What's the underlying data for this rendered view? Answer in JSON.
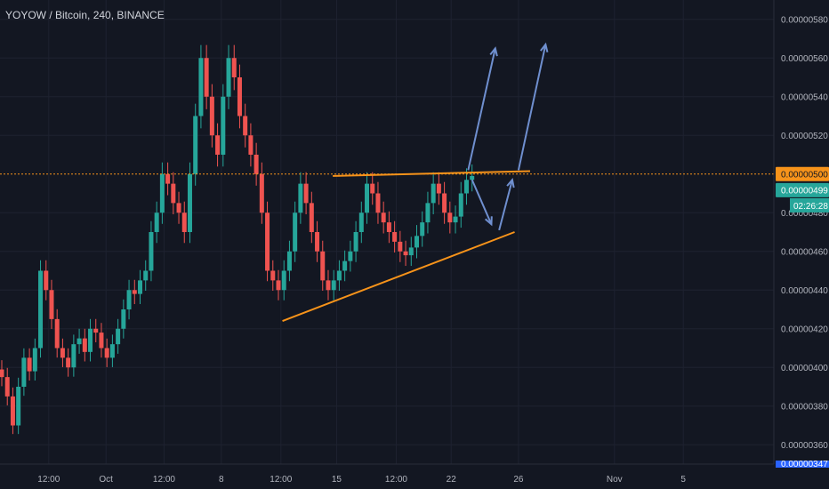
{
  "header": {
    "symbol": "YOYOW / Bitcoin, 240, BINANCE"
  },
  "colors": {
    "background": "#131722",
    "grid": "#1e2230",
    "up": "#26a69a",
    "down": "#ef5350",
    "trendline": "#f7931a",
    "arrow": "#6f8fcf",
    "price_line": "#f7931a",
    "last_price_tag": "#26a69a"
  },
  "chart_data": {
    "type": "candlestick",
    "y_axis_ticks": [
      "0.00000580",
      "0.00000560",
      "0.00000540",
      "0.00000520",
      "0.00000480",
      "0.00000460",
      "0.00000440",
      "0.00000420",
      "0.00000400",
      "0.00000380",
      "0.00000360"
    ],
    "x_axis_ticks": [
      "12:00",
      "Oct",
      "12:00",
      "8",
      "12:00",
      "15",
      "12:00",
      "22",
      "26",
      "Nov",
      "5"
    ],
    "ylim": [
      3.5e-06,
      5.9e-06
    ],
    "horizontal_level": {
      "price": "0.00000500",
      "value": 5e-06
    },
    "last_price": {
      "price": "0.00000499",
      "value": 4.99e-06,
      "countdown": "02:26:28"
    },
    "partial_bottom_label": "0.00000347",
    "candles_close_path": [
      3.95e-06,
      3.85e-06,
      3.7e-06,
      3.9e-06,
      4.05e-06,
      3.98e-06,
      4.1e-06,
      4.5e-06,
      4.4e-06,
      4.25e-06,
      4.1e-06,
      4.05e-06,
      4e-06,
      4.12e-06,
      4.15e-06,
      4.08e-06,
      4.2e-06,
      4.18e-06,
      4.1e-06,
      4.05e-06,
      4.12e-06,
      4.2e-06,
      4.3e-06,
      4.4e-06,
      4.38e-06,
      4.45e-06,
      4.5e-06,
      4.7e-06,
      4.8e-06,
      5e-06,
      4.95e-06,
      4.85e-06,
      4.8e-06,
      4.7e-06,
      5e-06,
      5.3e-06,
      5.6e-06,
      5.4e-06,
      5.2e-06,
      5.1e-06,
      5.4e-06,
      5.6e-06,
      5.5e-06,
      5.3e-06,
      5.2e-06,
      5.1e-06,
      5e-06,
      4.8e-06,
      4.5e-06,
      4.45e-06,
      4.4e-06,
      4.5e-06,
      4.6e-06,
      4.8e-06,
      4.95e-06,
      4.85e-06,
      4.7e-06,
      4.6e-06,
      4.45e-06,
      4.4e-06,
      4.45e-06,
      4.5e-06,
      4.55e-06,
      4.6e-06,
      4.7e-06,
      4.8e-06,
      4.95e-06,
      4.9e-06,
      4.8e-06,
      4.75e-06,
      4.7e-06,
      4.65e-06,
      4.6e-06,
      4.58e-06,
      4.62e-06,
      4.68e-06,
      4.75e-06,
      4.85e-06,
      4.95e-06,
      4.9e-06,
      4.8e-06,
      4.75e-06,
      4.78e-06,
      4.9e-06,
      4.97e-06,
      4.99e-06
    ],
    "annotations": {
      "resistance_line": {
        "from": [
          0.43,
          4.99e-06
        ],
        "to": [
          0.685,
          5.015e-06
        ]
      },
      "support_line": {
        "from": [
          0.365,
          4.24e-06
        ],
        "to": [
          0.665,
          4.7e-06
        ]
      },
      "arrows": [
        {
          "from": [
            0.605,
            5.02e-06
          ],
          "to": [
            0.64,
            5.65e-06
          ]
        },
        {
          "from": [
            0.67,
            5.02e-06
          ],
          "to": [
            0.705,
            5.67e-06
          ]
        },
        {
          "from": [
            0.61,
            4.97e-06
          ],
          "to": [
            0.635,
            4.74e-06
          ]
        },
        {
          "from": [
            0.645,
            4.71e-06
          ],
          "to": [
            0.662,
            4.97e-06
          ]
        }
      ]
    }
  }
}
